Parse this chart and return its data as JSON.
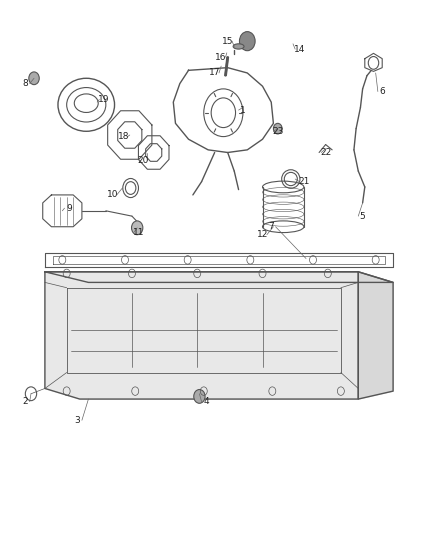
{
  "bg_color": "#ffffff",
  "line_color": "#555555",
  "label_color": "#333333",
  "figsize": [
    4.38,
    5.33
  ],
  "dpi": 100
}
